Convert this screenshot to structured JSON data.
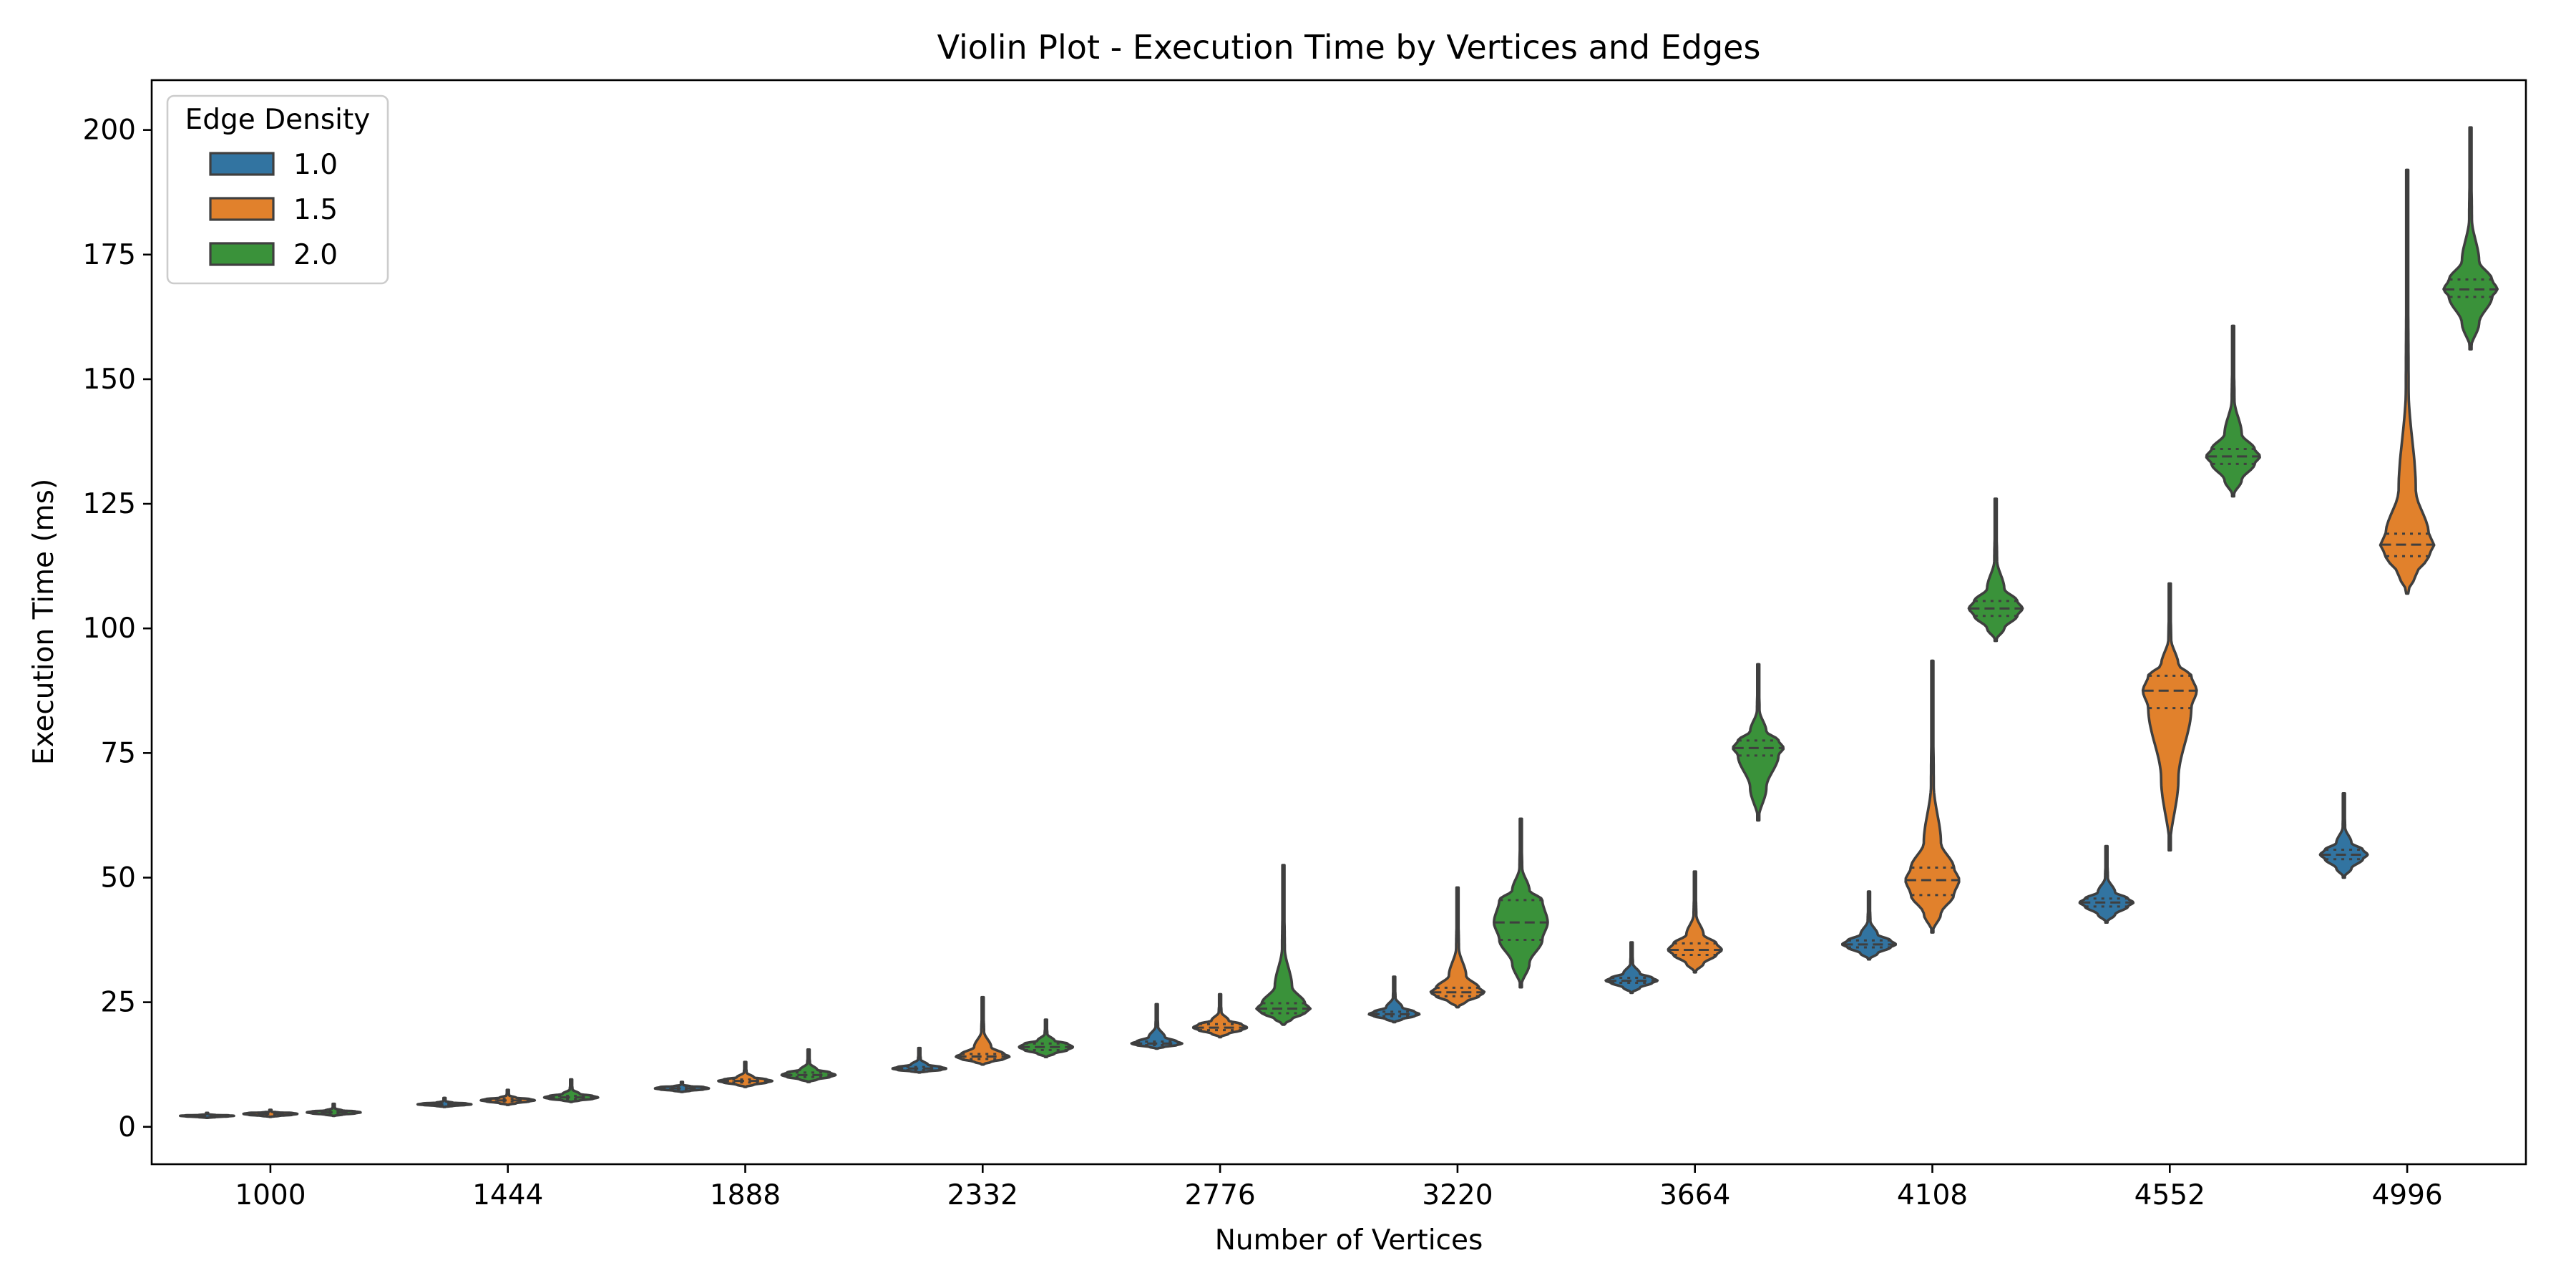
{
  "chart_data": {
    "type": "violin",
    "title": "Violin Plot - Execution Time by Vertices and Edges",
    "xlabel": "Number of Vertices",
    "ylabel": "Execution Time (ms)",
    "categories": [
      "1000",
      "1444",
      "1888",
      "2332",
      "2776",
      "3220",
      "3664",
      "4108",
      "4552",
      "4996"
    ],
    "ylim": [
      -7.5,
      210
    ],
    "yticks": [
      0,
      25,
      50,
      75,
      100,
      125,
      150,
      175,
      200
    ],
    "grid": false,
    "legend": {
      "title": "Edge Density",
      "position": "upper-left"
    },
    "inner": "quartile",
    "series": [
      {
        "name": "1.0",
        "color": "#3274a1",
        "violins": [
          {
            "min": 1.8,
            "q1": 2.1,
            "median": 2.2,
            "q3": 2.3,
            "max": 2.8,
            "width": 0.85
          },
          {
            "min": 4.0,
            "q1": 4.4,
            "median": 4.5,
            "q3": 4.7,
            "max": 5.8,
            "width": 0.85
          },
          {
            "min": 7.0,
            "q1": 7.5,
            "median": 7.7,
            "q3": 8.0,
            "max": 9.0,
            "width": 0.85
          },
          {
            "min": 10.9,
            "q1": 11.4,
            "median": 11.7,
            "q3": 12.0,
            "max": 15.8,
            "width": 0.85
          },
          {
            "min": 15.7,
            "q1": 16.4,
            "median": 16.7,
            "q3": 17.1,
            "max": 24.6,
            "width": 0.8
          },
          {
            "min": 21.0,
            "q1": 22.2,
            "median": 22.6,
            "q3": 23.1,
            "max": 30.1,
            "width": 0.8
          },
          {
            "min": 26.9,
            "q1": 28.9,
            "median": 29.3,
            "q3": 29.9,
            "max": 37.0,
            "width": 0.82
          },
          {
            "min": 33.6,
            "q1": 36.0,
            "median": 36.6,
            "q3": 37.4,
            "max": 47.2,
            "width": 0.85
          },
          {
            "min": 41.0,
            "q1": 44.2,
            "median": 45.0,
            "q3": 45.8,
            "max": 56.3,
            "width": 0.85
          },
          {
            "min": 50.0,
            "q1": 53.7,
            "median": 54.6,
            "q3": 55.6,
            "max": 66.9,
            "width": 0.75
          }
        ]
      },
      {
        "name": "1.5",
        "color": "#e1812c",
        "violins": [
          {
            "min": 2.0,
            "q1": 2.4,
            "median": 2.6,
            "q3": 2.8,
            "max": 3.4,
            "width": 0.85
          },
          {
            "min": 4.4,
            "q1": 5.1,
            "median": 5.3,
            "q3": 5.6,
            "max": 7.4,
            "width": 0.85
          },
          {
            "min": 8.0,
            "q1": 8.9,
            "median": 9.2,
            "q3": 9.5,
            "max": 13.0,
            "width": 0.85
          },
          {
            "min": 12.5,
            "q1": 13.6,
            "median": 14.1,
            "q3": 14.6,
            "max": 26.0,
            "width": 0.85
          },
          {
            "min": 18.0,
            "q1": 19.4,
            "median": 19.9,
            "q3": 20.6,
            "max": 26.6,
            "width": 0.85
          },
          {
            "min": 24.0,
            "q1": 26.2,
            "median": 27.0,
            "q3": 27.9,
            "max": 48.0,
            "width": 0.85
          },
          {
            "min": 31.0,
            "q1": 34.5,
            "median": 35.5,
            "q3": 36.8,
            "max": 51.2,
            "width": 0.85
          },
          {
            "min": 39.0,
            "q1": 46.5,
            "median": 49.5,
            "q3": 52.0,
            "max": 93.5,
            "width": 0.85
          },
          {
            "min": 55.5,
            "q1": 84.0,
            "median": 87.5,
            "q3": 90.5,
            "max": 109.0,
            "width": 0.85
          },
          {
            "min": 107.0,
            "q1": 114.5,
            "median": 116.8,
            "q3": 119.0,
            "max": 192.0,
            "width": 0.85
          }
        ]
      },
      {
        "name": "2.0",
        "color": "#3a923a",
        "violins": [
          {
            "min": 2.2,
            "q1": 2.7,
            "median": 2.9,
            "q3": 3.1,
            "max": 4.6,
            "width": 0.85
          },
          {
            "min": 5.0,
            "q1": 5.6,
            "median": 5.9,
            "q3": 6.2,
            "max": 9.5,
            "width": 0.85
          },
          {
            "min": 9.0,
            "q1": 10.0,
            "median": 10.4,
            "q3": 10.9,
            "max": 15.5,
            "width": 0.85
          },
          {
            "min": 14.0,
            "q1": 15.4,
            "median": 16.0,
            "q3": 16.7,
            "max": 21.5,
            "width": 0.85
          },
          {
            "min": 20.5,
            "q1": 22.8,
            "median": 23.7,
            "q3": 24.8,
            "max": 52.5,
            "width": 0.85
          },
          {
            "min": 28.0,
            "q1": 37.5,
            "median": 41.0,
            "q3": 45.5,
            "max": 61.8,
            "width": 0.85
          },
          {
            "min": 61.5,
            "q1": 74.5,
            "median": 76.0,
            "q3": 77.5,
            "max": 92.8,
            "width": 0.8
          },
          {
            "min": 97.5,
            "q1": 102.5,
            "median": 104.0,
            "q3": 105.5,
            "max": 126.0,
            "width": 0.85
          },
          {
            "min": 126.5,
            "q1": 133.0,
            "median": 134.5,
            "q3": 136.0,
            "max": 160.7,
            "width": 0.85
          },
          {
            "min": 156.0,
            "q1": 166.5,
            "median": 168.0,
            "q3": 170.0,
            "max": 200.5,
            "width": 0.85
          }
        ]
      }
    ]
  }
}
